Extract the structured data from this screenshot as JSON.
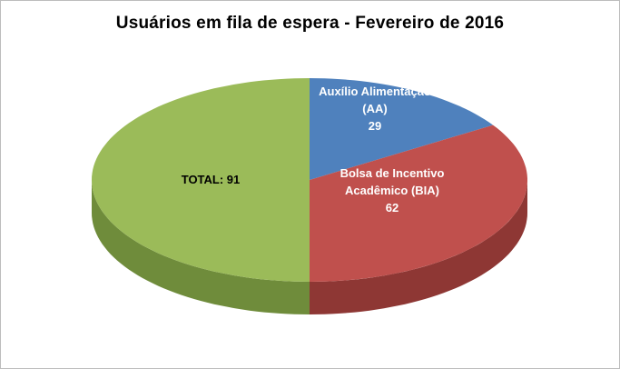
{
  "chart_data": {
    "type": "pie",
    "title": "Usuários em fila de espera - Fevereiro de 2016",
    "legend": "none",
    "style": "3d",
    "start_angle_deg": 0,
    "clockwise": true,
    "total_shown_on_chart": 91,
    "slices": [
      {
        "label": "Auxílio Alimentação (AA)",
        "value": 29,
        "color": "#4F81BD",
        "side_color": "#38619B",
        "label_lines": [
          "Auxílio Alimentação",
          "(AA)",
          "29"
        ],
        "label_color": "#FFFFFF"
      },
      {
        "label": "Bolsa de Incentivo Acadêmico (BIA)",
        "value": 62,
        "color": "#C0504D",
        "side_color": "#8E3734",
        "label_lines": [
          "Bolsa de Incentivo",
          "Acadêmico (BIA)",
          "62"
        ],
        "label_color": "#FFFFFF"
      },
      {
        "label": "TOTAL",
        "value": 91,
        "color": "#9BBB59",
        "side_color": "#6F8C3B",
        "label_lines": [
          "TOTAL: 91"
        ],
        "label_color": "#000000"
      }
    ],
    "frame_border_color": "#BDBDBD",
    "background_color": "#FFFFFF"
  }
}
